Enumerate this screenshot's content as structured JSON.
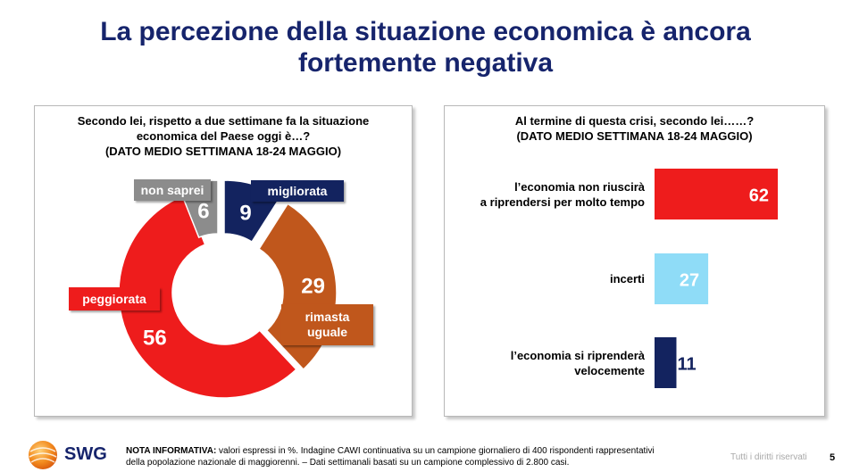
{
  "page": {
    "title_lines": [
      "La percezione della situazione economica è ancora",
      "fortemente negativa"
    ]
  },
  "left_panel": {
    "question_lines": [
      "Secondo lei, rispetto a due settimane fa la situazione",
      "economica del Paese oggi è…?",
      "(DATO MEDIO SETTIMANA 18-24 MAGGIO)"
    ]
  },
  "right_panel": {
    "question_lines": [
      "Al termine di questa crisi, secondo lei……?",
      "(DATO MEDIO SETTIMANA 18-24 MAGGIO)"
    ]
  },
  "chart_data": [
    {
      "type": "pie",
      "title": "Secondo lei, rispetto a due settimane fa la situazione economica del Paese oggi è…? (DATO MEDIO SETTIMANA 18-24 MAGGIO)",
      "categories": [
        "migliorata",
        "rimasta uguale",
        "peggiorata",
        "non saprei"
      ],
      "values": [
        9,
        29,
        56,
        6
      ],
      "value_labels": [
        "9",
        "29",
        "56",
        "6"
      ],
      "colors": [
        "#13235f",
        "#c0571c",
        "#ee1c1c",
        "#8c8c8c"
      ],
      "label_lines": [
        [
          "migliorata"
        ],
        [
          "rimasta",
          "uguale"
        ],
        [
          "peggiorata"
        ],
        [
          "non saprei"
        ]
      ]
    },
    {
      "type": "bar",
      "orientation": "horizontal",
      "title": "Al termine di questa crisi, secondo lei……? (DATO MEDIO SETTIMANA 18-24 MAGGIO)",
      "categories": [
        "l'economia non riuscirà a riprendersi per molto tempo",
        "incerti",
        "l'economia si riprenderà velocemente"
      ],
      "category_lines": [
        [
          "l’economia non riuscirà",
          "a riprendersi per molto tempo"
        ],
        [
          "incerti"
        ],
        [
          "l’economia si riprenderà",
          "velocemente"
        ]
      ],
      "values": [
        62,
        27,
        11
      ],
      "value_labels": [
        "62",
        "27",
        "11"
      ],
      "colors": [
        "#ee1c1c",
        "#8fdcf7",
        "#13235f"
      ],
      "value_label_colors": [
        "#ffffff",
        "#ffffff",
        "#13235f"
      ],
      "xlim": [
        0,
        62
      ]
    }
  ],
  "footer": {
    "note_label": "NOTA INFORMATIVA:",
    "note_line1": " valori espressi in %. Indagine CAWI continuativa su un campione giornaliero di 400 rispondenti rappresentativi",
    "note_line2": "della popolazione nazionale di maggiorenni. – Dati settimanali basati su un campione complessivo di 2.800 casi.",
    "rights": "Tutti i diritti riservati",
    "page_number": "5",
    "logo_text": "SWG"
  },
  "colors": {
    "title": "#16246c"
  }
}
